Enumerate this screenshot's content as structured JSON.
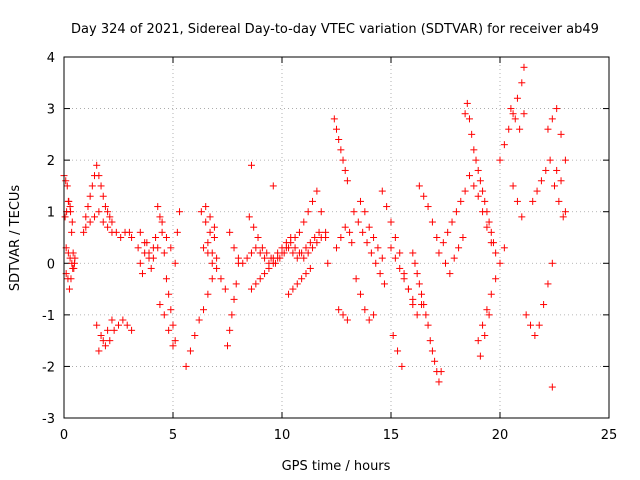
{
  "chart_data": {
    "type": "scatter",
    "title": "Day 324 of 2021, Sidereal Day-to-day VTEC variation (SDTVAR) for receiver ab49",
    "xlabel": "GPS time / hours",
    "ylabel": "SDTVAR / TECUs",
    "xlim": [
      0,
      25
    ],
    "ylim": [
      -3,
      4
    ],
    "x_ticks": [
      0,
      5,
      10,
      15,
      20,
      25
    ],
    "x_tick_labels": [
      "0",
      "5",
      "10",
      "15",
      "20",
      "25"
    ],
    "y_ticks": [
      -3,
      -2,
      -1,
      0,
      1,
      2,
      3,
      4
    ],
    "y_tick_labels": [
      "-3",
      "-2",
      "-1",
      "0",
      "1",
      "2",
      "3",
      "4"
    ],
    "grid": true,
    "marker": "+",
    "color": "#ff0000",
    "series": [
      {
        "name": "SDTVAR",
        "x": [
          0.0,
          0.08,
          0.15,
          0.22,
          0.3,
          0.38,
          0.1,
          0.2,
          0.28,
          0.36,
          0.45,
          0.05,
          0.12,
          0.2,
          0.28,
          0.35,
          0.42,
          0.5,
          0.1,
          0.18,
          0.25,
          0.32,
          0.4,
          0.48,
          0.9,
          1.0,
          1.1,
          1.2,
          1.3,
          1.4,
          1.5,
          1.6,
          1.7,
          1.8,
          1.9,
          2.0,
          2.1,
          2.2,
          1.0,
          1.2,
          1.4,
          1.6,
          1.8,
          2.0,
          2.2,
          2.4,
          2.6,
          2.8,
          3.0,
          3.1,
          1.5,
          1.7,
          1.9,
          2.1,
          2.3,
          2.5,
          2.7,
          2.9,
          3.1,
          1.6,
          1.8,
          2.0,
          2.2,
          3.4,
          3.5,
          3.6,
          3.7,
          3.8,
          3.9,
          4.0,
          4.1,
          4.2,
          3.5,
          3.7,
          3.9,
          4.1,
          4.3,
          4.3,
          4.4,
          4.5,
          4.6,
          4.7,
          4.8,
          4.9,
          5.0,
          5.1,
          4.4,
          4.6,
          4.8,
          5.0,
          4.5,
          4.7,
          4.9,
          5.1,
          5.2,
          5.3,
          5.6,
          5.8,
          6.0,
          6.2,
          6.4,
          6.6,
          6.8,
          7.0,
          6.3,
          6.5,
          6.7,
          6.9,
          6.4,
          6.6,
          6.8,
          7.0,
          7.2,
          7.4,
          6.5,
          6.7,
          6.9,
          6.6,
          6.8,
          7.5,
          7.6,
          7.7,
          7.8,
          7.9,
          8.0,
          7.6,
          7.8,
          8.0,
          8.2,
          8.4,
          8.6,
          8.8,
          9.0,
          9.2,
          9.4,
          9.6,
          9.8,
          10.0,
          10.2,
          10.4,
          10.6,
          10.8,
          11.0,
          11.2,
          11.4,
          11.6,
          11.8,
          12.0,
          8.5,
          8.7,
          8.9,
          9.1,
          9.3,
          9.5,
          9.7,
          9.9,
          10.1,
          10.3,
          10.5,
          10.7,
          10.9,
          11.1,
          11.3,
          11.5,
          11.7,
          8.6,
          8.8,
          9.0,
          9.2,
          9.4,
          9.6,
          9.8,
          10.0,
          10.2,
          10.4,
          10.6,
          10.8,
          11.0,
          11.2,
          11.4,
          11.6,
          11.8,
          12.0,
          12.1,
          10.3,
          10.5,
          10.7,
          10.9,
          11.1,
          11.3,
          8.6,
          9.6,
          12.4,
          12.5,
          12.6,
          12.7,
          12.8,
          12.9,
          13.0,
          12.5,
          12.7,
          12.9,
          13.1,
          13.2,
          12.6,
          12.8,
          13.0,
          13.3,
          13.5,
          13.7,
          13.9,
          14.1,
          14.3,
          14.5,
          14.7,
          13.6,
          13.8,
          14.0,
          14.2,
          14.4,
          14.6,
          13.4,
          13.6,
          13.8,
          14.0,
          14.2,
          14.6,
          14.8,
          15.0,
          15.2,
          15.4,
          15.6,
          15.8,
          16.0,
          16.2,
          16.4,
          15.0,
          15.2,
          15.4,
          15.6,
          15.8,
          16.0,
          15.1,
          15.3,
          15.5,
          16.0,
          16.1,
          16.2,
          16.3,
          16.4,
          16.5,
          16.6,
          16.7,
          16.8,
          16.9,
          17.0,
          17.1,
          17.2,
          17.3,
          16.3,
          16.5,
          16.7,
          16.9,
          17.1,
          17.2,
          17.4,
          17.6,
          17.8,
          18.0,
          18.2,
          18.4,
          17.5,
          17.7,
          17.9,
          18.1,
          18.3,
          18.4,
          18.5,
          18.6,
          18.7,
          18.8,
          18.9,
          19.0,
          19.1,
          19.2,
          19.3,
          19.4,
          19.5,
          19.6,
          19.7,
          19.8,
          18.6,
          18.8,
          19.0,
          19.2,
          19.4,
          19.6,
          19.0,
          19.2,
          19.4,
          19.6,
          19.8,
          20.0,
          20.2,
          19.1,
          19.3,
          19.5,
          20.0,
          20.2,
          20.4,
          20.6,
          20.8,
          21.0,
          21.1,
          20.5,
          20.7,
          20.9,
          21.1,
          20.6,
          20.8,
          21.0,
          21.2,
          21.4,
          21.6,
          21.8,
          22.0,
          22.2,
          22.4,
          21.5,
          21.7,
          21.9,
          22.1,
          22.3,
          22.2,
          22.4,
          22.6,
          22.8,
          23.0,
          22.5,
          22.7,
          22.9,
          22.6,
          22.8,
          23.0,
          22.4
        ],
        "y": [
          1.7,
          1.6,
          1.5,
          1.2,
          1.0,
          0.8,
          0.3,
          0.2,
          0.1,
          0.0,
          -0.1,
          0.9,
          1.0,
          1.2,
          1.1,
          0.6,
          0.2,
          0.1,
          -0.2,
          -0.3,
          -0.5,
          -0.3,
          -0.1,
          0.0,
          0.6,
          0.9,
          1.1,
          1.3,
          1.5,
          1.7,
          1.9,
          1.7,
          1.5,
          1.3,
          1.1,
          1.0,
          0.9,
          0.8,
          0.7,
          0.8,
          0.9,
          1.0,
          0.8,
          0.7,
          0.6,
          0.6,
          0.5,
          0.6,
          0.6,
          0.5,
          -1.2,
          -1.4,
          -1.6,
          -1.5,
          -1.3,
          -1.2,
          -1.1,
          -1.2,
          -1.3,
          -1.7,
          -1.5,
          -1.3,
          -1.1,
          0.3,
          0.0,
          -0.2,
          0.2,
          0.4,
          0.1,
          -0.1,
          0.3,
          0.5,
          0.6,
          0.4,
          0.2,
          0.1,
          0.3,
          1.1,
          0.9,
          0.6,
          0.2,
          -0.3,
          -0.6,
          -0.9,
          -1.2,
          -1.5,
          -0.8,
          -1.0,
          -1.3,
          -1.6,
          0.8,
          0.5,
          0.3,
          0.0,
          0.6,
          1.0,
          -2.0,
          -1.7,
          -1.4,
          -1.1,
          -0.9,
          -0.6,
          -0.3,
          0.1,
          1.0,
          0.8,
          0.6,
          0.5,
          0.3,
          0.2,
          0.0,
          -0.1,
          -0.3,
          -0.5,
          1.1,
          0.9,
          0.7,
          0.4,
          0.2,
          -1.6,
          -1.3,
          -1.0,
          -0.7,
          -0.4,
          0.1,
          0.6,
          0.3,
          0.0,
          0.0,
          0.1,
          0.2,
          0.3,
          0.2,
          0.1,
          0.0,
          0.1,
          0.2,
          0.3,
          0.4,
          0.5,
          0.3,
          0.2,
          0.1,
          0.2,
          0.3,
          0.4,
          0.5,
          0.6,
          0.9,
          0.7,
          0.5,
          0.3,
          0.2,
          0.1,
          0.0,
          0.1,
          0.2,
          0.3,
          0.2,
          0.1,
          0.2,
          0.3,
          0.4,
          0.5,
          0.6,
          -0.5,
          -0.4,
          -0.3,
          -0.2,
          -0.1,
          0.0,
          0.1,
          0.2,
          0.3,
          0.4,
          0.5,
          0.6,
          0.8,
          1.0,
          1.2,
          1.4,
          1.0,
          0.5,
          0.0,
          -0.6,
          -0.5,
          -0.4,
          -0.3,
          -0.2,
          -0.1,
          1.9,
          1.5,
          2.8,
          2.6,
          2.4,
          2.2,
          2.0,
          1.8,
          1.6,
          0.3,
          0.5,
          0.7,
          0.6,
          0.4,
          -0.9,
          -1.0,
          -1.1,
          1.0,
          0.8,
          0.6,
          0.4,
          0.2,
          0.0,
          -0.2,
          -0.4,
          1.2,
          1.0,
          0.7,
          0.5,
          0.3,
          0.1,
          -0.3,
          -0.6,
          -0.9,
          -1.1,
          -1.0,
          1.4,
          1.1,
          0.8,
          0.5,
          0.2,
          -0.2,
          -0.5,
          -0.8,
          -1.0,
          -0.8,
          0.3,
          0.1,
          -0.1,
          -0.3,
          -0.5,
          -0.7,
          -1.4,
          -1.7,
          -2.0,
          0.2,
          0.0,
          -0.2,
          -0.4,
          -0.6,
          -0.8,
          -1.0,
          -1.2,
          -1.5,
          -1.7,
          -1.9,
          -2.1,
          -2.3,
          -2.1,
          1.5,
          1.3,
          1.1,
          0.8,
          0.5,
          0.2,
          0.4,
          0.6,
          0.8,
          1.0,
          1.2,
          1.4,
          0.0,
          -0.2,
          0.1,
          0.3,
          0.5,
          2.9,
          3.1,
          2.8,
          2.5,
          2.2,
          2.0,
          1.8,
          1.6,
          1.4,
          1.2,
          1.0,
          0.8,
          0.6,
          0.4,
          0.2,
          1.7,
          1.5,
          1.3,
          1.0,
          0.7,
          0.4,
          -1.5,
          -1.2,
          -0.9,
          -0.6,
          -0.3,
          0.0,
          0.3,
          -1.8,
          -1.4,
          -1.0,
          2.0,
          2.3,
          2.6,
          2.9,
          3.2,
          3.5,
          3.8,
          3.0,
          2.8,
          2.6,
          2.9,
          1.5,
          1.2,
          0.9,
          -1.0,
          -1.2,
          -1.4,
          -1.2,
          -0.8,
          -0.4,
          0.0,
          1.2,
          1.4,
          1.6,
          1.8,
          2.0,
          2.6,
          2.8,
          3.0,
          2.5,
          2.0,
          1.5,
          1.2,
          0.9,
          1.8,
          1.6,
          1.0,
          -2.4
        ]
      }
    ]
  }
}
